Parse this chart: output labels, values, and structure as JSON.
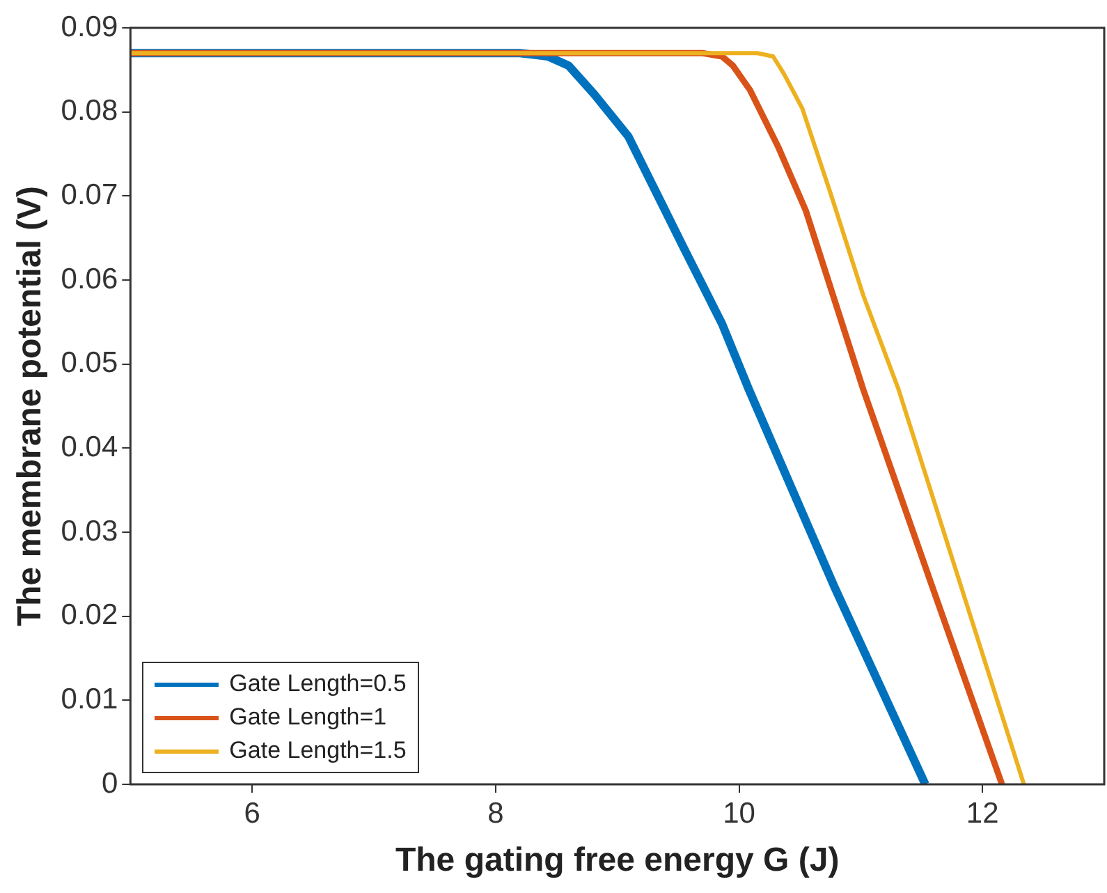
{
  "chart_data": {
    "type": "line",
    "xlabel": "The gating free energy G (J)",
    "ylabel": "The membrane potential (V)",
    "xlim": [
      5,
      13
    ],
    "xticks": [
      6,
      8,
      10,
      12
    ],
    "ylim": [
      0,
      0.09
    ],
    "yticks": [
      0,
      0.01,
      0.02,
      0.03,
      0.04,
      0.05,
      0.06,
      0.07,
      0.08,
      0.09
    ],
    "grid": false,
    "legend": "bottom left",
    "marker": "none",
    "line_style": "solid",
    "series": [
      {
        "name": "Gate Length=0.5",
        "color": "#0072bd",
        "x": [
          5,
          8.2,
          8.43,
          8.6,
          8.81,
          9.09,
          9.32,
          9.55,
          9.86,
          10.08,
          10.78,
          11.53
        ],
        "values": [
          0.087,
          0.087,
          0.0866,
          0.0855,
          0.0821,
          0.0771,
          0.0704,
          0.0637,
          0.0548,
          0.047,
          0.0236,
          0
        ]
      },
      {
        "name": "Gate Length=1",
        "color": "#d95319",
        "x": [
          5,
          9.7,
          9.86,
          9.95,
          10.09,
          10.32,
          10.55,
          11.02,
          11.6,
          12.16
        ],
        "values": [
          0.087,
          0.087,
          0.0866,
          0.0855,
          0.0826,
          0.0759,
          0.0682,
          0.047,
          0.023,
          0
        ]
      },
      {
        "name": "Gate Length=1.5",
        "color": "#edb120",
        "x": [
          5,
          10.15,
          10.28,
          10.37,
          10.52,
          10.75,
          11.02,
          11.31,
          12.34
        ],
        "values": [
          0.087,
          0.087,
          0.0866,
          0.0845,
          0.0804,
          0.0704,
          0.0582,
          0.047,
          0
        ]
      }
    ]
  }
}
